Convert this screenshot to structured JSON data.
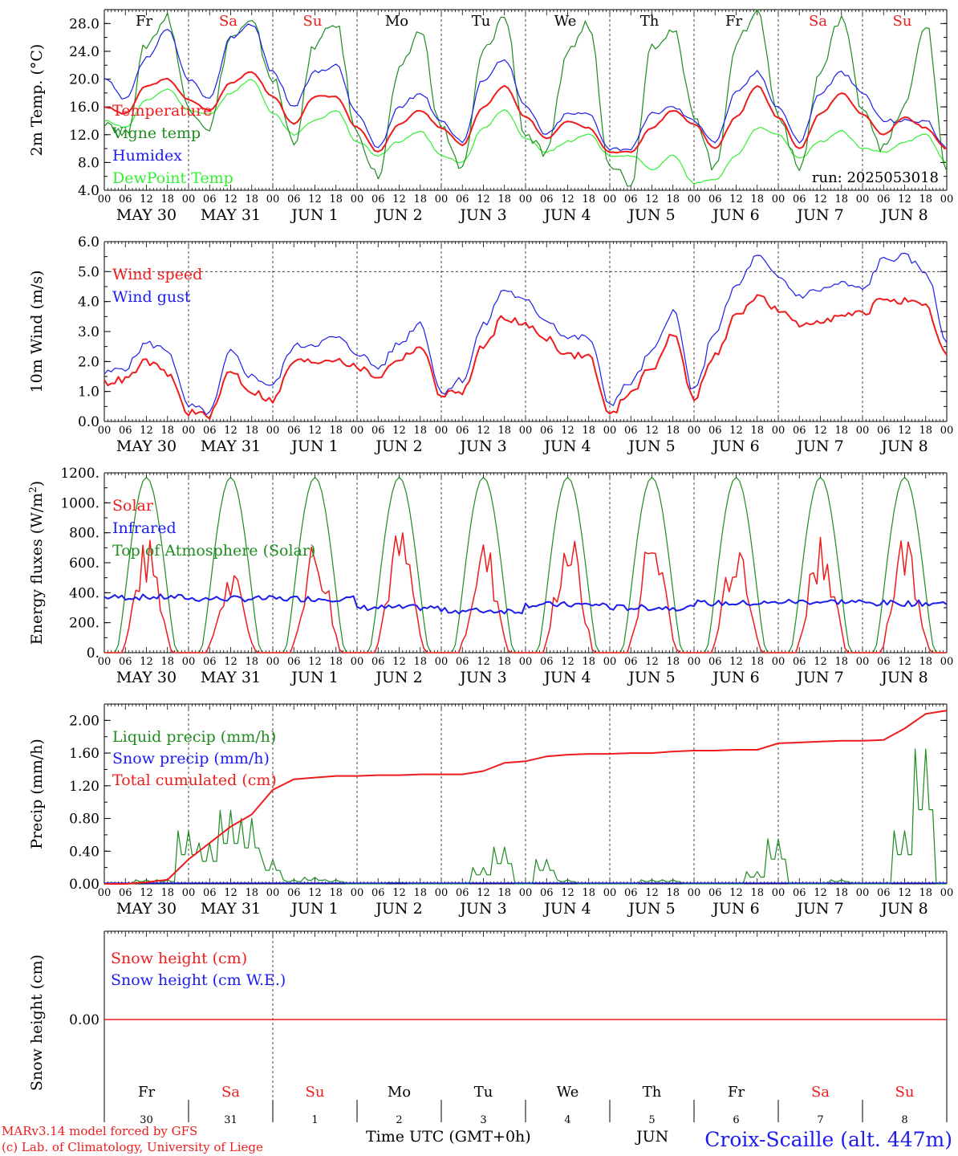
{
  "colors": {
    "red": "#ee1c1c",
    "blue": "#1c1cee",
    "green": "#1e8c1e",
    "lightgreen": "#33ee33",
    "black": "#000000",
    "grid": "#555555"
  },
  "day_labels": [
    "Fr",
    "Sa",
    "Su",
    "Mo",
    "Tu",
    "We",
    "Th",
    "Fr",
    "Sa",
    "Su"
  ],
  "day_label_colors": [
    "black",
    "red",
    "red",
    "black",
    "black",
    "black",
    "black",
    "black",
    "red",
    "red"
  ],
  "date_labels": [
    "MAY 30",
    "MAY 31",
    "JUN  1",
    "JUN  2",
    "JUN  3",
    "JUN  4",
    "JUN  5",
    "JUN  6",
    "JUN  7",
    "JUN  8"
  ],
  "hour_ticks": [
    "00",
    "06",
    "12",
    "18"
  ],
  "bottom_day_numbers": [
    "30",
    "31",
    "1",
    "2",
    "3",
    "4",
    "5",
    "6",
    "7",
    "8"
  ],
  "footer": {
    "model": "MARv3.14 model forced by GFS",
    "copyright": "(c) Lab. of Climatology, University of Liege",
    "xlabel": "Time UTC (GMT+0h)",
    "station": "Croix-Scaille (alt. 447m)",
    "month": "JUN"
  },
  "chart_data": [
    {
      "type": "line",
      "ylabel": "2m Temp. (°C)",
      "ylim": [
        4,
        30
      ],
      "yticks": [
        "4.0",
        "8.0",
        "12.0",
        "16.0",
        "20.0",
        "24.0",
        "28.0"
      ],
      "run_label": "run: 2025053018",
      "x_hours": [
        0,
        6,
        12,
        18,
        24,
        30,
        36,
        42,
        48,
        54,
        60,
        66,
        72,
        78,
        84,
        90,
        96,
        102,
        108,
        114,
        120,
        126,
        132,
        138,
        144,
        150,
        156,
        162,
        168,
        174,
        180,
        186,
        192,
        198,
        204,
        210,
        216,
        222,
        228,
        234,
        240
      ],
      "series": [
        {
          "name": "Temperature",
          "color": "red",
          "values": [
            16,
            15,
            19,
            20,
            17,
            15.5,
            19.5,
            21,
            17.5,
            13.5,
            17.5,
            17.5,
            13,
            9.5,
            13.5,
            15.5,
            13,
            10.5,
            16,
            19,
            14.5,
            11.5,
            14,
            13,
            9.5,
            9.5,
            13,
            15.5,
            13.5,
            10,
            14.5,
            19,
            14.5,
            10,
            15,
            18,
            15,
            12,
            14.5,
            13,
            10
          ]
        },
        {
          "name": "Vigne temp",
          "color": "green",
          "values": [
            14,
            12,
            25,
            29,
            16,
            13,
            26,
            28,
            20,
            11,
            25,
            28,
            12,
            6,
            21,
            27,
            13,
            7,
            24,
            29,
            12,
            9,
            24,
            28,
            8,
            5,
            25,
            27,
            15,
            7,
            25,
            30,
            15,
            7,
            21,
            29,
            16,
            10,
            16,
            28,
            7
          ]
        },
        {
          "name": "Humidex",
          "color": "blue",
          "values": [
            20,
            17,
            23,
            27,
            20,
            17,
            26,
            28,
            21,
            16,
            21,
            22,
            15,
            10,
            16,
            18,
            14,
            11,
            20,
            23,
            16,
            12,
            15,
            15,
            10,
            10,
            15,
            16,
            14,
            11,
            18,
            21,
            16,
            11,
            18,
            21,
            18,
            14,
            14,
            14,
            10
          ]
        },
        {
          "name": "DewPoint Temp",
          "color": "lightgreen",
          "values": [
            14,
            13,
            17,
            18.5,
            15.5,
            15,
            18,
            20,
            15,
            12,
            14,
            15.5,
            11,
            9,
            11,
            12.5,
            9,
            8,
            13,
            15.5,
            11.5,
            9.5,
            11,
            12,
            9,
            9,
            7,
            9,
            5,
            5.5,
            9,
            13,
            12,
            8.5,
            11,
            12.5,
            10,
            9.5,
            11,
            12,
            8
          ]
        }
      ]
    },
    {
      "type": "line",
      "ylabel": "10m Wind (m/s)",
      "ylim": [
        0,
        6
      ],
      "yticks": [
        "0.0",
        "1.0",
        "2.0",
        "3.0",
        "4.0",
        "5.0",
        "6.0"
      ],
      "ref_line": 5.0,
      "x_hours": [
        0,
        6,
        12,
        18,
        24,
        30,
        36,
        42,
        48,
        54,
        60,
        66,
        72,
        78,
        84,
        90,
        96,
        102,
        108,
        114,
        120,
        126,
        132,
        138,
        144,
        150,
        156,
        162,
        168,
        174,
        180,
        186,
        192,
        198,
        204,
        210,
        216,
        222,
        228,
        234,
        240
      ],
      "series": [
        {
          "name": "Wind speed",
          "color": "red",
          "values": [
            1.3,
            1.4,
            2.0,
            1.6,
            0.3,
            0.2,
            1.7,
            1.0,
            0.7,
            2.0,
            2.0,
            2.1,
            1.8,
            1.5,
            2.1,
            2.5,
            0.9,
            1.0,
            2.5,
            3.5,
            3.2,
            2.8,
            2.2,
            2.2,
            0.2,
            1.0,
            1.8,
            2.9,
            0.8,
            2.2,
            3.5,
            4.2,
            3.7,
            3.2,
            3.4,
            3.5,
            3.6,
            4.1,
            4.0,
            3.8,
            2.2
          ]
        },
        {
          "name": "Wind gust",
          "color": "blue",
          "values": [
            1.6,
            1.8,
            2.6,
            2.4,
            0.5,
            0.3,
            2.3,
            1.5,
            1.2,
            2.5,
            2.6,
            2.8,
            2.3,
            1.8,
            2.6,
            3.3,
            1.0,
            1.4,
            3.2,
            4.4,
            4.0,
            3.4,
            2.8,
            2.8,
            0.6,
            1.3,
            2.3,
            3.7,
            1.0,
            3.0,
            4.5,
            5.5,
            4.8,
            4.2,
            4.4,
            4.6,
            4.4,
            5.4,
            5.5,
            5.0,
            2.7
          ]
        }
      ]
    },
    {
      "type": "line",
      "ylabel": "Energy fluxes (W/m²)",
      "ylim": [
        0,
        1200
      ],
      "yticks": [
        "0.",
        "200.",
        "400.",
        "600.",
        "800.",
        "1000.",
        "1200."
      ],
      "series": [
        {
          "name": "Solar",
          "color": "red",
          "daily_peaks": [
            780,
            560,
            800,
            860,
            780,
            860,
            880,
            880,
            880,
            850
          ]
        },
        {
          "name": "Infrared",
          "color": "blue",
          "daily_means": [
            370,
            360,
            360,
            300,
            280,
            320,
            300,
            330,
            340,
            330
          ]
        },
        {
          "name": "Top of Atmosphere (Solar)",
          "color": "green",
          "daily_peaks": [
            1170,
            1170,
            1170,
            1170,
            1170,
            1170,
            1170,
            1170,
            1170,
            1170
          ]
        }
      ]
    },
    {
      "type": "line",
      "ylabel": "Precip (mm/h)",
      "ylim": [
        0,
        2.2
      ],
      "yticks": [
        "0.00",
        "0.40",
        "0.80",
        "1.20",
        "1.60",
        "2.00"
      ],
      "x_hours": [
        0,
        6,
        12,
        18,
        24,
        30,
        36,
        42,
        48,
        54,
        60,
        66,
        72,
        78,
        84,
        90,
        96,
        102,
        108,
        114,
        120,
        126,
        132,
        138,
        144,
        150,
        156,
        162,
        168,
        174,
        180,
        186,
        192,
        198,
        204,
        210,
        216,
        222,
        228,
        234,
        240
      ],
      "series": [
        {
          "name": "Liquid precip (mm/h)",
          "color": "green",
          "values": [
            0,
            0,
            0.05,
            0.05,
            0.65,
            0.5,
            0.9,
            0.8,
            0.3,
            0.05,
            0.08,
            0.05,
            0,
            0,
            0.02,
            0,
            0,
            0,
            0.2,
            0.45,
            0,
            0.3,
            0.05,
            0,
            0,
            0,
            0.05,
            0.05,
            0,
            0,
            0,
            0.15,
            0.55,
            0,
            0,
            0.05,
            0,
            0,
            0.65,
            1.65,
            0
          ]
        },
        {
          "name": "Snow precip (mm/h)",
          "color": "blue",
          "values": []
        },
        {
          "name": "Total cumulated (cm)",
          "color": "red",
          "values": [
            0,
            0,
            0.02,
            0.05,
            0.3,
            0.5,
            0.7,
            0.85,
            1.15,
            1.28,
            1.3,
            1.32,
            1.32,
            1.33,
            1.33,
            1.34,
            1.34,
            1.34,
            1.38,
            1.48,
            1.5,
            1.56,
            1.58,
            1.59,
            1.59,
            1.6,
            1.6,
            1.62,
            1.63,
            1.63,
            1.64,
            1.64,
            1.72,
            1.73,
            1.74,
            1.75,
            1.75,
            1.76,
            1.9,
            2.08,
            2.12
          ]
        }
      ]
    },
    {
      "type": "line",
      "ylabel": "Snow height (cm)",
      "yticks": [
        "0.00"
      ],
      "series": [
        {
          "name": "Snow height (cm)",
          "color": "red",
          "values": [
            0,
            0
          ]
        },
        {
          "name": "Snow height (cm W.E.)",
          "color": "blue",
          "values": []
        }
      ]
    }
  ]
}
